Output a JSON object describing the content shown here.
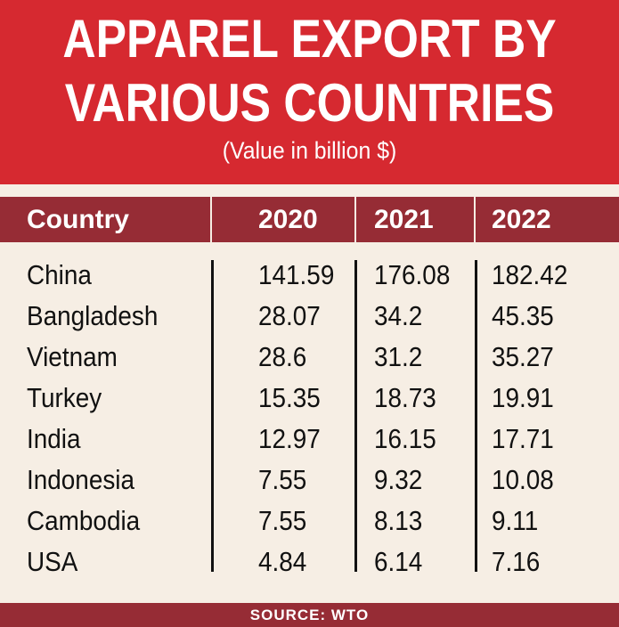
{
  "chart_data": {
    "type": "table",
    "title_line1": "APPAREL EXPORT BY",
    "title_line2": "VARIOUS COUNTRIES",
    "subtitle": "(Value in billion $)",
    "columns": [
      "Country",
      "2020",
      "2021",
      "2022"
    ],
    "rows": [
      {
        "country": "China",
        "y2020": "141.59",
        "y2021": "176.08",
        "y2022": "182.42"
      },
      {
        "country": "Bangladesh",
        "y2020": "28.07",
        "y2021": "34.2",
        "y2022": "45.35"
      },
      {
        "country": "Vietnam",
        "y2020": "28.6",
        "y2021": "31.2",
        "y2022": "35.27"
      },
      {
        "country": "Turkey",
        "y2020": "15.35",
        "y2021": "18.73",
        "y2022": "19.91"
      },
      {
        "country": "India",
        "y2020": "12.97",
        "y2021": "16.15",
        "y2022": "17.71"
      },
      {
        "country": "Indonesia",
        "y2020": "7.55",
        "y2021": "9.32",
        "y2022": "10.08"
      },
      {
        "country": "Cambodia",
        "y2020": "7.55",
        "y2021": "8.13",
        "y2022": "9.11"
      },
      {
        "country": "USA",
        "y2020": "4.84",
        "y2021": "6.14",
        "y2022": "7.16"
      }
    ],
    "source": "SOURCE: WTO"
  },
  "colors": {
    "header_red": "#d62930",
    "row_header_maroon": "#962c35",
    "background": "#f6eee4"
  }
}
